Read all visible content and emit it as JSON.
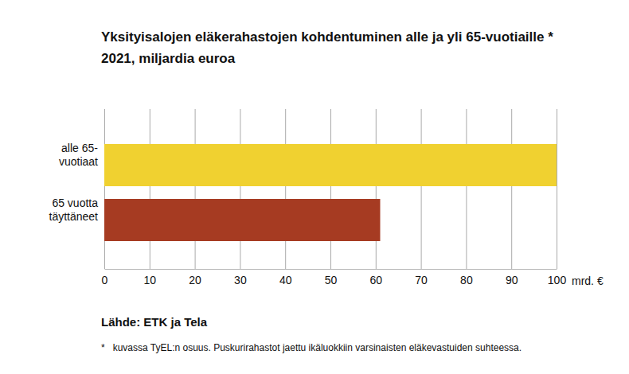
{
  "chart_data": {
    "type": "bar",
    "orientation": "horizontal",
    "title": "Yksityisalojen eläkerahastojen kohdentuminen alle ja yli 65-vuotiaille *",
    "subtitle": "2021, miljardia euroa",
    "categories": [
      "alle 65-\nvuotiaat",
      "65 vuotta\ntäyttäneet"
    ],
    "values": [
      100,
      61
    ],
    "colors": [
      "#f0d130",
      "#a63b22"
    ],
    "xlim": [
      0,
      100
    ],
    "xticks": [
      0,
      10,
      20,
      30,
      40,
      50,
      60,
      70,
      80,
      90,
      100
    ],
    "xlabel": "mrd. €",
    "grid": true,
    "source": "Lähde: ETK ja Tela",
    "note": "*   kuvassa TyEL:n osuus. Puskurirahastot jaettu ikäluokkiin varsinaisten eläkevastuiden suhteessa."
  }
}
